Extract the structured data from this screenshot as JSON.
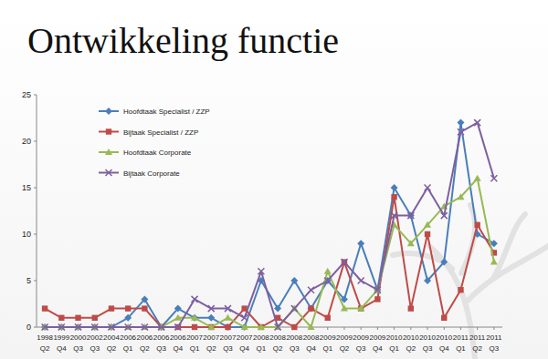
{
  "chart_data": {
    "type": "line",
    "title": "Ontwikkeling functie",
    "categories": [
      "1998 Q2",
      "1999 Q4",
      "2000 Q3",
      "2002 Q3",
      "2004 Q2",
      "2006 Q1",
      "2006 Q2",
      "2006 Q3",
      "2006 Q4",
      "2007 Q1",
      "2007 Q2",
      "2007 Q3",
      "2007 Q4",
      "2008 Q1",
      "2008 Q2",
      "2008 Q3",
      "2008 Q4",
      "2009 Q1",
      "2009 Q2",
      "2009 Q3",
      "2009 Q4",
      "2010 Q1",
      "2010 Q2",
      "2010 Q3",
      "2010 Q4",
      "2011 Q1",
      "2011 Q2",
      "2011 Q3"
    ],
    "series": [
      {
        "name": "Hoofdtaak Specialist / ZZP",
        "color": "#4a7ebb",
        "marker": "diamond",
        "values": [
          0,
          0,
          0,
          0,
          0,
          1,
          3,
          0,
          2,
          1,
          1,
          0,
          0,
          5,
          2,
          5,
          2,
          5,
          3,
          9,
          4,
          15,
          12,
          5,
          7,
          22,
          10,
          9
        ]
      },
      {
        "name": "Bijtaak Specialist / ZZP",
        "color": "#be4b48",
        "marker": "square",
        "values": [
          2,
          1,
          1,
          1,
          2,
          2,
          2,
          0,
          0,
          0,
          0,
          0,
          2,
          0,
          1,
          0,
          2,
          1,
          7,
          2,
          3,
          14,
          2,
          10,
          1,
          4,
          11,
          8
        ]
      },
      {
        "name": "Hoofdtaak Corporate",
        "color": "#98b954",
        "marker": "triangle",
        "values": [
          0,
          0,
          0,
          0,
          0,
          0,
          0,
          0,
          1,
          1,
          0,
          1,
          0,
          0,
          0,
          2,
          0,
          6,
          2,
          2,
          4,
          11,
          9,
          11,
          13,
          14,
          16,
          7
        ]
      },
      {
        "name": "Bijtaak Corporate",
        "color": "#7d60a0",
        "marker": "x",
        "values": [
          0,
          0,
          0,
          0,
          0,
          0,
          0,
          0,
          0,
          3,
          2,
          2,
          1,
          6,
          0,
          2,
          4,
          5,
          7,
          5,
          4,
          12,
          12,
          15,
          12,
          21,
          22,
          16
        ]
      }
    ],
    "ylim": [
      0,
      25
    ],
    "yticks": [
      0,
      5,
      10,
      15,
      20,
      25
    ],
    "grid": false,
    "legend": "upper-left"
  }
}
